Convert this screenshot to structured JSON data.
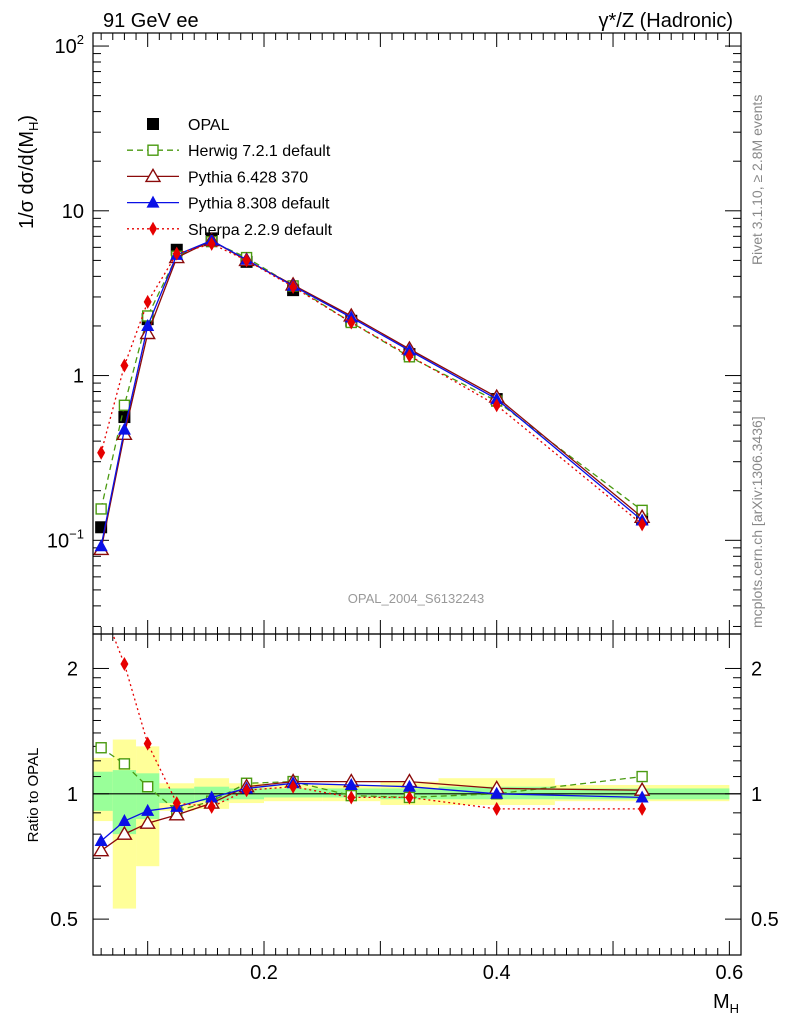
{
  "header": {
    "left": "91 GeV ee",
    "right": "γ*/Z (Hadronic)"
  },
  "side": {
    "rivet": "Rivet 3.1.10, ≥ 2.8M events",
    "mcplots": "mcplots.cern.ch [arXiv:1306.3436]"
  },
  "chart_data": [
    {
      "type": "scatter",
      "panel": "main",
      "watermark": "OPAL_2004_S6132243",
      "ylabel_parts": {
        "a": "1/σ dσ/d(M",
        "sub": "H",
        "b": ")"
      },
      "yscale": "log",
      "xlim": [
        0.053,
        0.61
      ],
      "ylim": [
        0.027,
        120
      ],
      "ytick_labels": [
        {
          "value": 100,
          "base": "10",
          "exp": "2"
        },
        {
          "value": 10,
          "base": "10",
          "exp": ""
        },
        {
          "value": 1,
          "base": "1",
          "exp": ""
        },
        {
          "value": 0.1,
          "base": "10",
          "exp": "−1"
        }
      ],
      "legend_position": "top-left",
      "x": [
        0.06,
        0.08,
        0.1,
        0.125,
        0.155,
        0.185,
        0.225,
        0.275,
        0.325,
        0.4,
        0.525
      ],
      "series": [
        {
          "name": "OPAL",
          "color": "#000000",
          "marker": "square-filled",
          "line": "none",
          "values": [
            0.12,
            0.56,
            2.2,
            5.8,
            6.8,
            4.9,
            3.3,
            2.15,
            1.35,
            0.72,
            0.135
          ]
        },
        {
          "name": "Herwig 7.2.1 default",
          "color": "#4a9a10",
          "marker": "square-open",
          "line": "dashed",
          "values": [
            0.155,
            0.66,
            2.3,
            5.3,
            6.5,
            5.2,
            3.5,
            2.1,
            1.3,
            0.7,
            0.152
          ]
        },
        {
          "name": "Pythia 6.428 370",
          "color": "#8b0a0a",
          "marker": "triangle-open",
          "line": "solid",
          "values": [
            0.088,
            0.44,
            1.8,
            5.2,
            6.6,
            5.0,
            3.55,
            2.3,
            1.45,
            0.74,
            0.138
          ]
        },
        {
          "name": "Pythia 8.308 default",
          "color": "#0a10e6",
          "marker": "triangle-filled",
          "line": "solid",
          "values": [
            0.092,
            0.47,
            2.0,
            5.4,
            6.6,
            5.05,
            3.5,
            2.25,
            1.42,
            0.72,
            0.132
          ]
        },
        {
          "name": "Sherpa 2.2.9 default",
          "color": "#e60000",
          "marker": "diamond-filled",
          "line": "dotted",
          "values": [
            0.34,
            1.15,
            2.8,
            5.5,
            6.3,
            5.0,
            3.45,
            2.1,
            1.32,
            0.66,
            0.125
          ]
        }
      ]
    },
    {
      "type": "line",
      "panel": "ratio",
      "ylabel": "Ratio to OPAL",
      "xlabel_parts": {
        "a": "M",
        "sub": "H"
      },
      "yscale": "log",
      "xlim": [
        0.053,
        0.61
      ],
      "ylim": [
        0.41,
        2.42
      ],
      "ytick_labels": [
        {
          "value": 2,
          "label": "2"
        },
        {
          "value": 1,
          "label": "1"
        },
        {
          "value": 0.5,
          "label": "0.5"
        }
      ],
      "xtick_labels": [
        {
          "value": 0.2,
          "label": "0.2"
        },
        {
          "value": 0.4,
          "label": "0.4"
        },
        {
          "value": 0.6,
          "label": "0.6"
        }
      ],
      "bands": {
        "bin_edges": [
          0.05,
          0.07,
          0.09,
          0.11,
          0.14,
          0.17,
          0.2,
          0.25,
          0.3,
          0.35,
          0.45,
          0.6
        ],
        "outer_low": [
          0.86,
          0.53,
          0.67,
          0.91,
          0.92,
          0.95,
          0.96,
          0.96,
          0.94,
          0.94,
          0.96
        ],
        "outer_high": [
          1.22,
          1.35,
          1.3,
          1.06,
          1.09,
          1.06,
          1.05,
          1.05,
          1.07,
          1.09,
          1.05
        ],
        "inner_low": [
          0.91,
          0.8,
          0.87,
          0.95,
          0.96,
          0.97,
          0.98,
          0.98,
          0.97,
          0.97,
          0.97
        ],
        "inner_high": [
          1.13,
          1.14,
          1.12,
          1.03,
          1.04,
          1.03,
          1.03,
          1.03,
          1.03,
          1.04,
          1.03
        ],
        "outer_color": "#ffff99",
        "inner_color": "#99ff99"
      },
      "x": [
        0.06,
        0.08,
        0.1,
        0.125,
        0.155,
        0.185,
        0.225,
        0.275,
        0.325,
        0.4,
        0.525
      ],
      "series": [
        {
          "name": "Herwig 7.2.1 default",
          "color": "#4a9a10",
          "marker": "square-open",
          "line": "dashed",
          "values": [
            1.29,
            1.18,
            1.04,
            0.91,
            0.96,
            1.06,
            1.07,
            0.99,
            0.98,
            1.0,
            1.1
          ]
        },
        {
          "name": "Pythia 6.428 370",
          "color": "#8b0a0a",
          "marker": "triangle-open",
          "line": "solid",
          "values": [
            0.73,
            0.8,
            0.85,
            0.89,
            0.95,
            1.04,
            1.07,
            1.07,
            1.07,
            1.03,
            1.02
          ]
        },
        {
          "name": "Pythia 8.308 default",
          "color": "#0a10e6",
          "marker": "triangle-filled",
          "line": "solid",
          "values": [
            0.77,
            0.86,
            0.91,
            0.93,
            0.98,
            1.03,
            1.06,
            1.05,
            1.04,
            1.0,
            0.98
          ]
        },
        {
          "name": "Sherpa 2.2.9 default",
          "color": "#e60000",
          "marker": "diamond-filled",
          "line": "dotted",
          "values": [
            2.85,
            2.05,
            1.32,
            0.95,
            0.93,
            1.02,
            1.04,
            0.98,
            0.98,
            0.92,
            0.92
          ]
        }
      ]
    }
  ]
}
